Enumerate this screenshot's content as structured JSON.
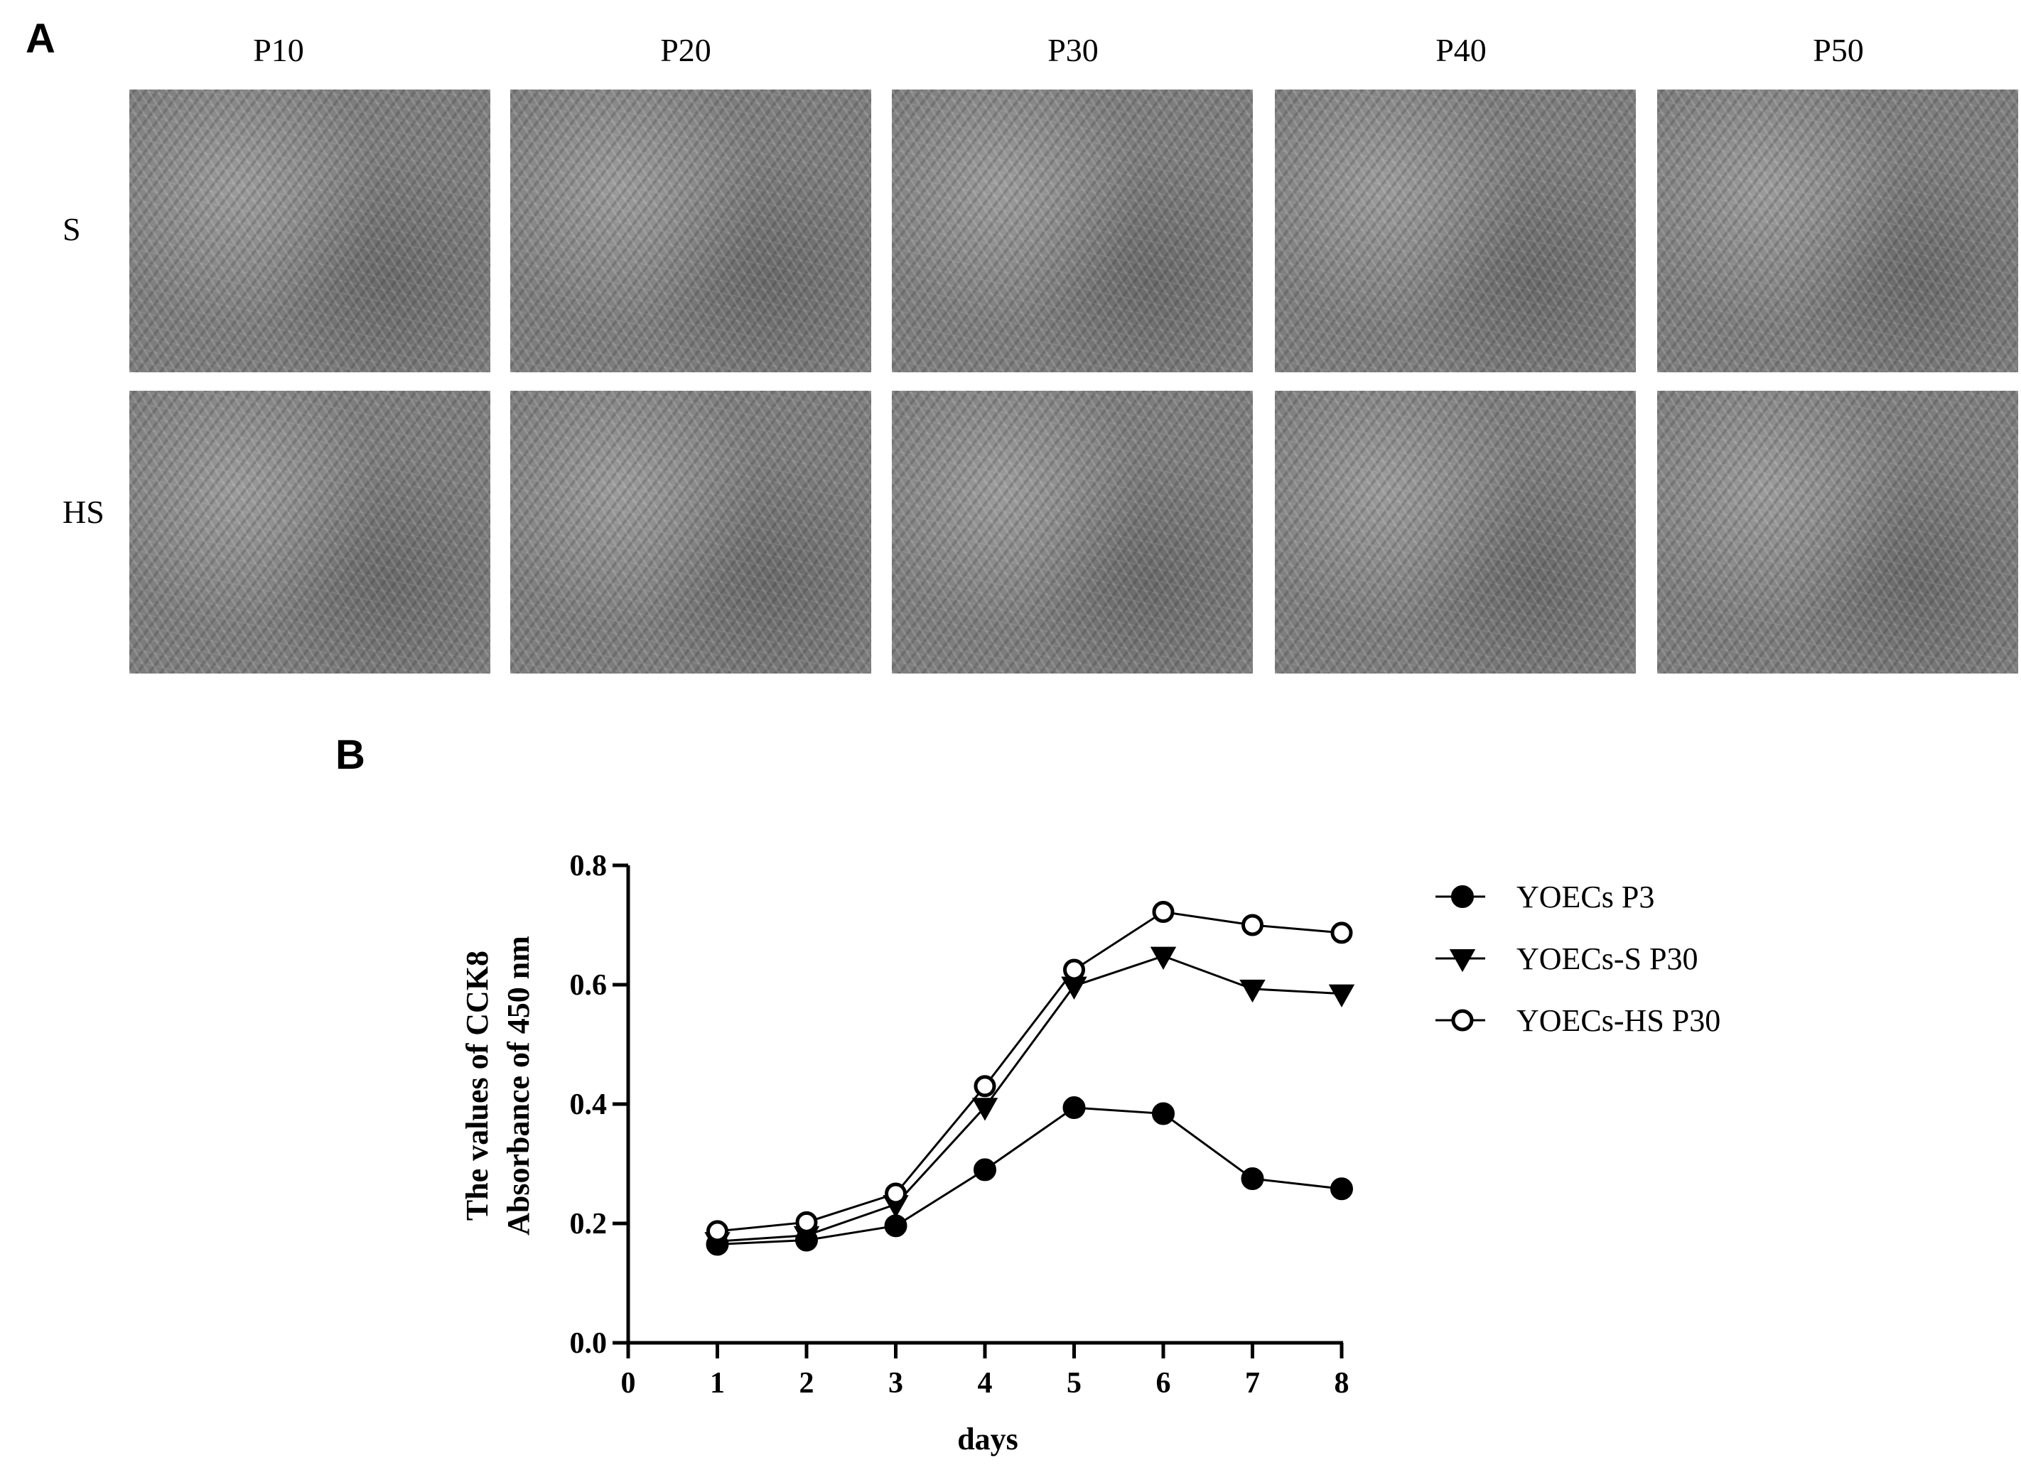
{
  "panel_a": {
    "letter": "A",
    "columns": [
      "P10",
      "P20",
      "P30",
      "P40",
      "P50"
    ],
    "rows": [
      "S",
      "HS"
    ],
    "image_color": "#7d7d7d"
  },
  "panel_b": {
    "letter": "B"
  },
  "chart_data": {
    "type": "line",
    "title": "",
    "xlabel": "days",
    "ylabel": [
      "The values of CCK8",
      "Absorbance of 450 nm"
    ],
    "xlim": [
      0,
      8
    ],
    "ylim": [
      0,
      0.8
    ],
    "x_ticks": [
      0,
      1,
      2,
      3,
      4,
      5,
      6,
      7,
      8
    ],
    "y_ticks": [
      0.0,
      0.2,
      0.4,
      0.6,
      0.8
    ],
    "y_tick_labels": [
      "0.0",
      "0.2",
      "0.4",
      "0.6",
      "0.8"
    ],
    "grid": false,
    "legend_position": "right",
    "x": [
      1,
      2,
      3,
      4,
      5,
      6,
      7,
      8
    ],
    "series": [
      {
        "name": "YOECs P3",
        "marker": "filled-circle",
        "color": "#000000",
        "values": [
          0.165,
          0.172,
          0.196,
          0.29,
          0.394,
          0.384,
          0.275,
          0.258
        ]
      },
      {
        "name": "YOECs-S P30",
        "marker": "filled-triangle-down",
        "color": "#000000",
        "values": [
          0.17,
          0.18,
          0.232,
          0.395,
          0.598,
          0.648,
          0.593,
          0.585
        ]
      },
      {
        "name": "YOECs-HS P30",
        "marker": "open-circle",
        "color": "#000000",
        "values": [
          0.187,
          0.202,
          0.25,
          0.43,
          0.625,
          0.722,
          0.7,
          0.687
        ]
      }
    ]
  }
}
